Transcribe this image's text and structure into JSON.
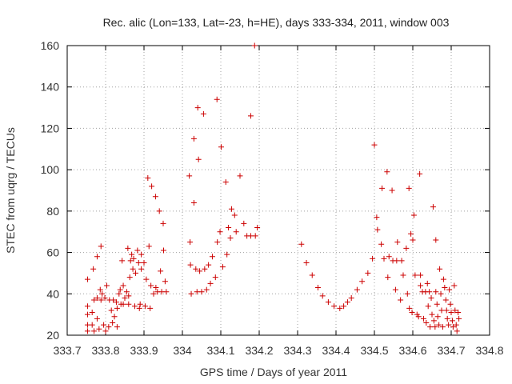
{
  "chart_data": {
    "type": "scatter",
    "title": "Rec. alic (Lon=133, Lat=-23, h=HE), days 333-334, 2011, window 003",
    "xlabel": "GPS time / Days of year 2011",
    "ylabel": "STEC from uqrg / TECUs",
    "xlim": [
      333.7,
      334.8
    ],
    "ylim": [
      20,
      160
    ],
    "xticks": [
      333.7,
      333.8,
      333.9,
      334,
      334.1,
      334.2,
      334.3,
      334.4,
      334.5,
      334.6,
      334.7,
      334.8
    ],
    "xtick_labels": [
      "333.7",
      "333.8",
      "333.9",
      "334",
      "334.1",
      "334.2",
      "334.3",
      "334.4",
      "334.5",
      "334.6",
      "334.7",
      "334.8"
    ],
    "yticks": [
      20,
      40,
      60,
      80,
      100,
      120,
      140,
      160
    ],
    "ytick_labels": [
      "20",
      "40",
      "60",
      "80",
      "100",
      "120",
      "140",
      "160"
    ],
    "grid": true,
    "marker": "+",
    "marker_color": "#cc0000",
    "points": [
      [
        333.753,
        47
      ],
      [
        333.753,
        34
      ],
      [
        333.753,
        30
      ],
      [
        333.753,
        25
      ],
      [
        333.753,
        22
      ],
      [
        333.765,
        31
      ],
      [
        333.765,
        25
      ],
      [
        333.768,
        52
      ],
      [
        333.77,
        37
      ],
      [
        333.77,
        22
      ],
      [
        333.778,
        58
      ],
      [
        333.778,
        38
      ],
      [
        333.778,
        28
      ],
      [
        333.783,
        23
      ],
      [
        333.786,
        42
      ],
      [
        333.788,
        63
      ],
      [
        333.788,
        37
      ],
      [
        333.791,
        40
      ],
      [
        333.795,
        25
      ],
      [
        333.798,
        38
      ],
      [
        333.8,
        22
      ],
      [
        333.803,
        44
      ],
      [
        333.808,
        24
      ],
      [
        333.81,
        37
      ],
      [
        333.815,
        32
      ],
      [
        333.818,
        26
      ],
      [
        333.82,
        37
      ],
      [
        333.823,
        29
      ],
      [
        333.828,
        36
      ],
      [
        333.83,
        33
      ],
      [
        333.83,
        24
      ],
      [
        333.835,
        40
      ],
      [
        333.838,
        42
      ],
      [
        333.84,
        35
      ],
      [
        333.843,
        56
      ],
      [
        333.846,
        44
      ],
      [
        333.846,
        35
      ],
      [
        333.85,
        38
      ],
      [
        333.855,
        41
      ],
      [
        333.858,
        62
      ],
      [
        333.86,
        39
      ],
      [
        333.86,
        35
      ],
      [
        333.863,
        48
      ],
      [
        333.865,
        56
      ],
      [
        333.868,
        59
      ],
      [
        333.871,
        52
      ],
      [
        333.873,
        57
      ],
      [
        333.876,
        34
      ],
      [
        333.878,
        50
      ],
      [
        333.883,
        61
      ],
      [
        333.886,
        55
      ],
      [
        333.888,
        33
      ],
      [
        333.89,
        35
      ],
      [
        333.893,
        59
      ],
      [
        333.893,
        52
      ],
      [
        333.9,
        55
      ],
      [
        333.903,
        34
      ],
      [
        333.906,
        47
      ],
      [
        333.91,
        96
      ],
      [
        333.913,
        63
      ],
      [
        333.916,
        33
      ],
      [
        333.918,
        44
      ],
      [
        333.92,
        92
      ],
      [
        333.925,
        40
      ],
      [
        333.93,
        87
      ],
      [
        333.931,
        43
      ],
      [
        333.935,
        41
      ],
      [
        333.94,
        80
      ],
      [
        333.943,
        51
      ],
      [
        333.946,
        41
      ],
      [
        333.95,
        74
      ],
      [
        333.951,
        61
      ],
      [
        333.955,
        46
      ],
      [
        333.958,
        41
      ],
      [
        334.018,
        97
      ],
      [
        334.02,
        65
      ],
      [
        334.021,
        54
      ],
      [
        334.023,
        40
      ],
      [
        334.03,
        115
      ],
      [
        334.03,
        84
      ],
      [
        334.035,
        52
      ],
      [
        334.038,
        41
      ],
      [
        334.04,
        130
      ],
      [
        334.042,
        105
      ],
      [
        334.045,
        51
      ],
      [
        334.05,
        41
      ],
      [
        334.055,
        127
      ],
      [
        334.058,
        52
      ],
      [
        334.063,
        42
      ],
      [
        334.068,
        54
      ],
      [
        334.073,
        45
      ],
      [
        334.078,
        58
      ],
      [
        334.086,
        48
      ],
      [
        334.09,
        134
      ],
      [
        334.091,
        65
      ],
      [
        334.098,
        70
      ],
      [
        334.101,
        111
      ],
      [
        334.105,
        53
      ],
      [
        334.113,
        94
      ],
      [
        334.116,
        59
      ],
      [
        334.12,
        72
      ],
      [
        334.125,
        67
      ],
      [
        334.128,
        81
      ],
      [
        334.136,
        78
      ],
      [
        334.14,
        70
      ],
      [
        334.15,
        97
      ],
      [
        334.16,
        74
      ],
      [
        334.168,
        68
      ],
      [
        334.178,
        126
      ],
      [
        334.178,
        68
      ],
      [
        334.188,
        160
      ],
      [
        334.19,
        68
      ],
      [
        334.195,
        72
      ],
      [
        334.31,
        64
      ],
      [
        334.323,
        55
      ],
      [
        334.338,
        49
      ],
      [
        334.353,
        43
      ],
      [
        334.365,
        39
      ],
      [
        334.38,
        36
      ],
      [
        334.395,
        34
      ],
      [
        334.41,
        33
      ],
      [
        334.42,
        34
      ],
      [
        334.43,
        36
      ],
      [
        334.44,
        38
      ],
      [
        334.455,
        42
      ],
      [
        334.468,
        46
      ],
      [
        334.483,
        50
      ],
      [
        334.495,
        57
      ],
      [
        334.5,
        112
      ],
      [
        334.506,
        77
      ],
      [
        334.508,
        71
      ],
      [
        334.518,
        64
      ],
      [
        334.52,
        91
      ],
      [
        334.525,
        57
      ],
      [
        334.533,
        99
      ],
      [
        334.535,
        48
      ],
      [
        334.538,
        58
      ],
      [
        334.546,
        90
      ],
      [
        334.548,
        56
      ],
      [
        334.555,
        42
      ],
      [
        334.558,
        56
      ],
      [
        334.56,
        65
      ],
      [
        334.568,
        37
      ],
      [
        334.571,
        56
      ],
      [
        334.575,
        49
      ],
      [
        334.583,
        62
      ],
      [
        334.586,
        40
      ],
      [
        334.59,
        91
      ],
      [
        334.591,
        33
      ],
      [
        334.595,
        69
      ],
      [
        334.598,
        31
      ],
      [
        334.6,
        66
      ],
      [
        334.603,
        78
      ],
      [
        334.606,
        49
      ],
      [
        334.611,
        30
      ],
      [
        334.615,
        29
      ],
      [
        334.618,
        98
      ],
      [
        334.62,
        49
      ],
      [
        334.62,
        44
      ],
      [
        334.625,
        41
      ],
      [
        334.628,
        28
      ],
      [
        334.633,
        41
      ],
      [
        334.635,
        26
      ],
      [
        334.638,
        45
      ],
      [
        334.64,
        34
      ],
      [
        334.643,
        41
      ],
      [
        334.645,
        24
      ],
      [
        334.648,
        38
      ],
      [
        334.65,
        30
      ],
      [
        334.653,
        82
      ],
      [
        334.655,
        27
      ],
      [
        334.658,
        24
      ],
      [
        334.66,
        66
      ],
      [
        334.66,
        41
      ],
      [
        334.663,
        35
      ],
      [
        334.665,
        29
      ],
      [
        334.668,
        25
      ],
      [
        334.67,
        52
      ],
      [
        334.673,
        40
      ],
      [
        334.675,
        32
      ],
      [
        334.678,
        24
      ],
      [
        334.68,
        47
      ],
      [
        334.683,
        43
      ],
      [
        334.686,
        37
      ],
      [
        334.688,
        32
      ],
      [
        334.69,
        28
      ],
      [
        334.693,
        25
      ],
      [
        334.695,
        42
      ],
      [
        334.698,
        35
      ],
      [
        334.7,
        31
      ],
      [
        334.703,
        27
      ],
      [
        334.705,
        24
      ],
      [
        334.708,
        44
      ],
      [
        334.71,
        32
      ],
      [
        334.713,
        25
      ],
      [
        334.715,
        22
      ],
      [
        334.718,
        31
      ],
      [
        334.72,
        28
      ]
    ]
  }
}
